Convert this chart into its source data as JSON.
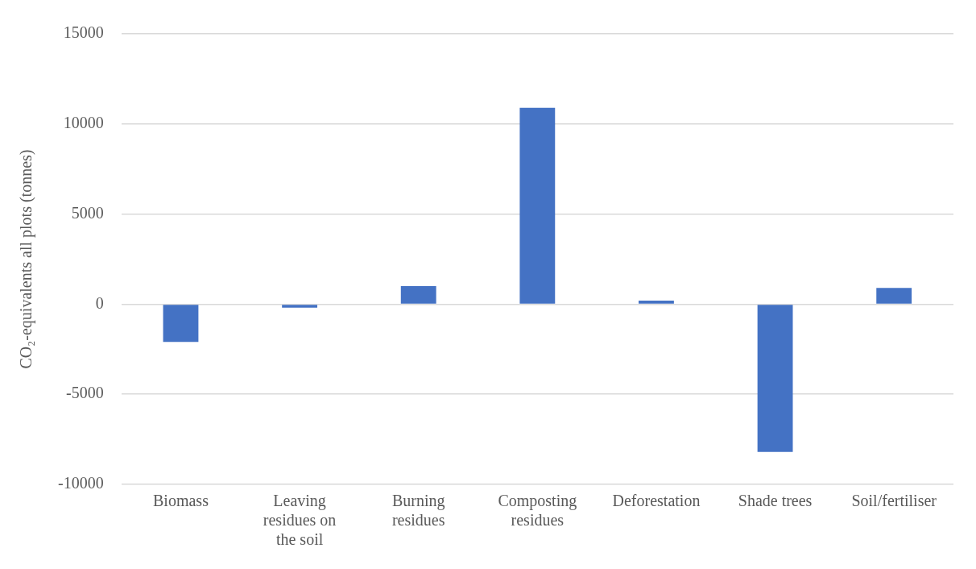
{
  "chart_data": {
    "type": "bar",
    "ylabel": "CO₂-equivalents all plots (tonnes)",
    "categories": [
      "Biomass",
      "Leaving residues on the soil",
      "Burning residues",
      "Composting residues",
      "Deforestation",
      "Shade trees",
      "Soil/fertiliser"
    ],
    "values": [
      -2100,
      -200,
      1000,
      10900,
      200,
      -8200,
      900
    ],
    "color": "#4472c4",
    "ylim": [
      -10000,
      15000
    ],
    "yticks": [
      -10000,
      -5000,
      0,
      5000,
      10000,
      15000
    ],
    "grid": "y",
    "legend": false
  }
}
